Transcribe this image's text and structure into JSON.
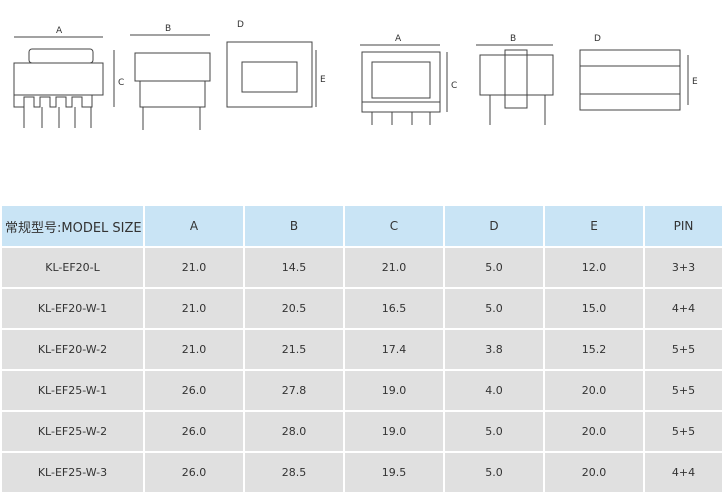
{
  "drawings": {
    "left": {
      "a": "A",
      "b": "B",
      "c": "C",
      "d": "D",
      "e": "E"
    },
    "right": {
      "a": "A",
      "b": "B",
      "c": "C",
      "d": "D",
      "e": "E"
    }
  },
  "table": {
    "headers": [
      "常规型号:MODEL SIZE",
      "A",
      "B",
      "C",
      "D",
      "E",
      "PIN"
    ],
    "rows": [
      [
        "KL-EF20-L",
        "21.0",
        "14.5",
        "21.0",
        "5.0",
        "12.0",
        "3+3"
      ],
      [
        "KL-EF20-W-1",
        "21.0",
        "20.5",
        "16.5",
        "5.0",
        "15.0",
        "4+4"
      ],
      [
        "KL-EF20-W-2",
        "21.0",
        "21.5",
        "17.4",
        "3.8",
        "15.2",
        "5+5"
      ],
      [
        "KL-EF25-W-1",
        "26.0",
        "27.8",
        "19.0",
        "4.0",
        "20.0",
        "5+5"
      ],
      [
        "KL-EF25-W-2",
        "26.0",
        "28.0",
        "19.0",
        "5.0",
        "20.0",
        "5+5"
      ],
      [
        "KL-EF25-W-3",
        "26.0",
        "28.5",
        "19.5",
        "5.0",
        "20.0",
        "4+4"
      ]
    ]
  }
}
